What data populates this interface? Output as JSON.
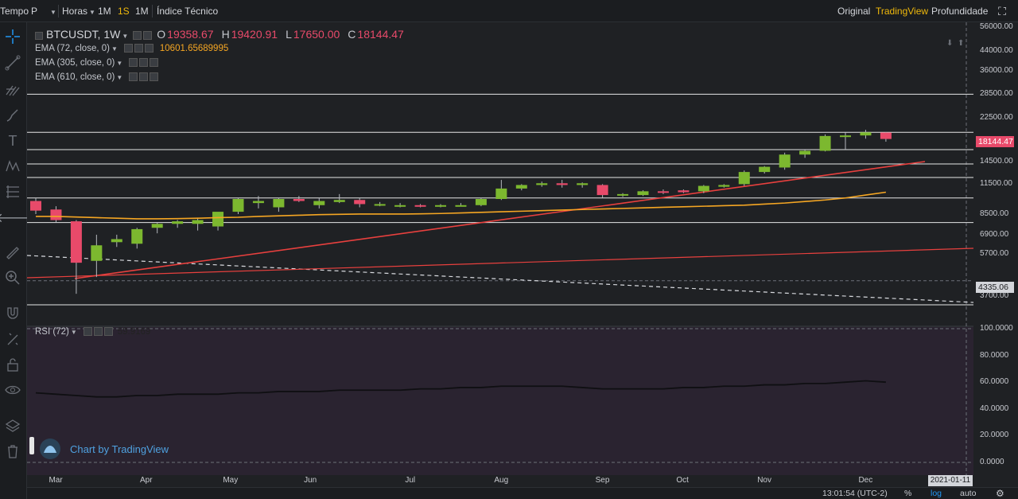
{
  "topbar": {
    "time_label": "Tempo",
    "interval_select": "P",
    "hours_label": "Horas",
    "intervals": [
      "1M",
      "1S",
      "1M"
    ],
    "active_interval": 1,
    "indicators_label": "Índice Técnico",
    "views": [
      "Original",
      "TradingView",
      "Profundidade"
    ],
    "active_view": 1
  },
  "leftbar": {
    "icons": [
      "crosshair-icon",
      "trend-line-icon",
      "pitchfork-icon",
      "brush-icon",
      "text-icon",
      "pattern-icon",
      "fib-icon",
      "back-arrow-icon",
      "ruler-icon",
      "zoom-icon",
      "magnet-icon",
      "lock-drawing-icon",
      "unlock-icon",
      "eye-icon",
      "layers-icon",
      "trash-icon"
    ]
  },
  "legend": {
    "symbol": "BTCUSDT, 1W",
    "o_label": "O",
    "o_value": "19358.67",
    "h_label": "H",
    "h_value": "19420.91",
    "l_label": "L",
    "l_value": "17650.00",
    "c_label": "C",
    "c_value": "18144.47",
    "ema": [
      {
        "label": "EMA (72, close, 0)",
        "value": "10601.65689995"
      },
      {
        "label": "EMA (305, close, 0)",
        "value": ""
      },
      {
        "label": "EMA (610, close, 0)",
        "value": ""
      }
    ]
  },
  "rsi": {
    "label": "RSI (72)",
    "value": "59.9169"
  },
  "price_axis": {
    "labels": [
      "56000.00",
      "44000.00",
      "36000.00",
      "28500.00",
      "22500.00",
      "14500.00",
      "11500.00",
      "8500.00",
      "6900.00",
      "5700.00",
      "3700.00"
    ],
    "last_price": "18144.47",
    "marker_price": "4335.06"
  },
  "rsi_axis": {
    "labels": [
      "100.0000",
      "80.0000",
      "60.0000",
      "40.0000",
      "20.0000",
      "0.0000"
    ]
  },
  "x_axis": {
    "labels": [
      "Mar",
      "Apr",
      "May",
      "Jun",
      "Jul",
      "Aug",
      "Sep",
      "Oct",
      "Nov",
      "Dec"
    ],
    "date_tag": "2021-01-11"
  },
  "footer": {
    "time": "13:01:54 (UTC-2)",
    "percent": "%",
    "log": "log",
    "auto": "auto"
  },
  "watermark": {
    "text": "Chart by TradingView"
  },
  "colors": {
    "up": "#7cb82f",
    "down": "#e84a6a",
    "ema72": "#f5a623",
    "trendline": "#e8403e",
    "accent": "#f0b90b",
    "blue": "#2196f3"
  },
  "chart_data": {
    "type": "candlestick",
    "series": [
      {
        "name": "BTCUSDT, 1W",
        "candles": [
          {
            "o": 9700,
            "h": 10000,
            "l": 8500,
            "c": 8800
          },
          {
            "o": 8900,
            "h": 9200,
            "l": 7800,
            "c": 8000
          },
          {
            "o": 7900,
            "h": 8000,
            "l": 3800,
            "c": 5200
          },
          {
            "o": 5300,
            "h": 6900,
            "l": 4500,
            "c": 6200
          },
          {
            "o": 6400,
            "h": 6900,
            "l": 6100,
            "c": 6600
          },
          {
            "o": 6300,
            "h": 7400,
            "l": 6000,
            "c": 7300
          },
          {
            "o": 7400,
            "h": 7800,
            "l": 7000,
            "c": 7700
          },
          {
            "o": 7700,
            "h": 8000,
            "l": 7400,
            "c": 7900
          },
          {
            "o": 7700,
            "h": 8200,
            "l": 7200,
            "c": 8000
          },
          {
            "o": 7500,
            "h": 8600,
            "l": 7200,
            "c": 8700
          },
          {
            "o": 8700,
            "h": 10000,
            "l": 8500,
            "c": 9900
          },
          {
            "o": 9500,
            "h": 10200,
            "l": 9000,
            "c": 9700
          },
          {
            "o": 9100,
            "h": 10000,
            "l": 8700,
            "c": 9900
          },
          {
            "o": 9900,
            "h": 10200,
            "l": 9600,
            "c": 9700
          },
          {
            "o": 9300,
            "h": 10000,
            "l": 9000,
            "c": 9700
          },
          {
            "o": 9600,
            "h": 10400,
            "l": 9500,
            "c": 9800
          },
          {
            "o": 9800,
            "h": 10000,
            "l": 9100,
            "c": 9400
          },
          {
            "o": 9400,
            "h": 9600,
            "l": 9200,
            "c": 9400
          },
          {
            "o": 9300,
            "h": 9500,
            "l": 9100,
            "c": 9300
          },
          {
            "o": 9300,
            "h": 9400,
            "l": 9100,
            "c": 9200
          },
          {
            "o": 9200,
            "h": 9400,
            "l": 9100,
            "c": 9300
          },
          {
            "o": 9300,
            "h": 9500,
            "l": 9200,
            "c": 9300
          },
          {
            "o": 9300,
            "h": 10000,
            "l": 9200,
            "c": 9900
          },
          {
            "o": 9900,
            "h": 12000,
            "l": 9800,
            "c": 11000
          },
          {
            "o": 11000,
            "h": 11500,
            "l": 10800,
            "c": 11400
          },
          {
            "o": 11400,
            "h": 11800,
            "l": 11200,
            "c": 11600
          },
          {
            "o": 11600,
            "h": 12000,
            "l": 11100,
            "c": 11400
          },
          {
            "o": 11400,
            "h": 11700,
            "l": 11100,
            "c": 11600
          },
          {
            "o": 11400,
            "h": 11500,
            "l": 10000,
            "c": 10300
          },
          {
            "o": 10300,
            "h": 10500,
            "l": 10100,
            "c": 10400
          },
          {
            "o": 10300,
            "h": 10800,
            "l": 10200,
            "c": 10700
          },
          {
            "o": 10700,
            "h": 10900,
            "l": 10400,
            "c": 10600
          },
          {
            "o": 10800,
            "h": 10900,
            "l": 10500,
            "c": 10600
          },
          {
            "o": 10700,
            "h": 11400,
            "l": 10500,
            "c": 11300
          },
          {
            "o": 11200,
            "h": 11500,
            "l": 11100,
            "c": 11400
          },
          {
            "o": 11500,
            "h": 13200,
            "l": 11300,
            "c": 13000
          },
          {
            "o": 13000,
            "h": 13800,
            "l": 12800,
            "c": 13700
          },
          {
            "o": 13600,
            "h": 15800,
            "l": 13300,
            "c": 15500
          },
          {
            "o": 15500,
            "h": 16300,
            "l": 15000,
            "c": 16100
          },
          {
            "o": 16100,
            "h": 19000,
            "l": 16000,
            "c": 18700
          },
          {
            "o": 18700,
            "h": 19400,
            "l": 16300,
            "c": 18800
          },
          {
            "o": 18800,
            "h": 19900,
            "l": 18200,
            "c": 19400
          },
          {
            "o": 19358.67,
            "h": 19420.91,
            "l": 17650.0,
            "c": 18144.47
          }
        ]
      },
      {
        "name": "EMA (72, close, 0)",
        "values": [
          8300,
          8300,
          8250,
          8200,
          8150,
          8100,
          8100,
          8120,
          8150,
          8200,
          8230,
          8300,
          8350,
          8400,
          8450,
          8480,
          8500,
          8500,
          8500,
          8520,
          8550,
          8600,
          8650,
          8700,
          8750,
          8800,
          8850,
          8900,
          8950,
          9000,
          9050,
          9100,
          9150,
          9200,
          9250,
          9300,
          9400,
          9500,
          9650,
          9800,
          10000,
          10300,
          10601.66
        ]
      }
    ],
    "horizontal_levels": [
      28500,
      19400,
      16300,
      14100,
      12300,
      10000,
      7800,
      4335.06,
      3400
    ],
    "y_scale": "log",
    "ylim": [
      3400,
      58000
    ],
    "rsi_range": [
      0,
      100
    ],
    "rsi_values": [
      52,
      51,
      50,
      49,
      49,
      50,
      50,
      51,
      51,
      51,
      52,
      52,
      53,
      53,
      53,
      54,
      54,
      54,
      54,
      55,
      55,
      56,
      56,
      57,
      57,
      57,
      57,
      56,
      55,
      55,
      55,
      55,
      56,
      56,
      57,
      57,
      58,
      58,
      59,
      59,
      60,
      61,
      60
    ]
  }
}
